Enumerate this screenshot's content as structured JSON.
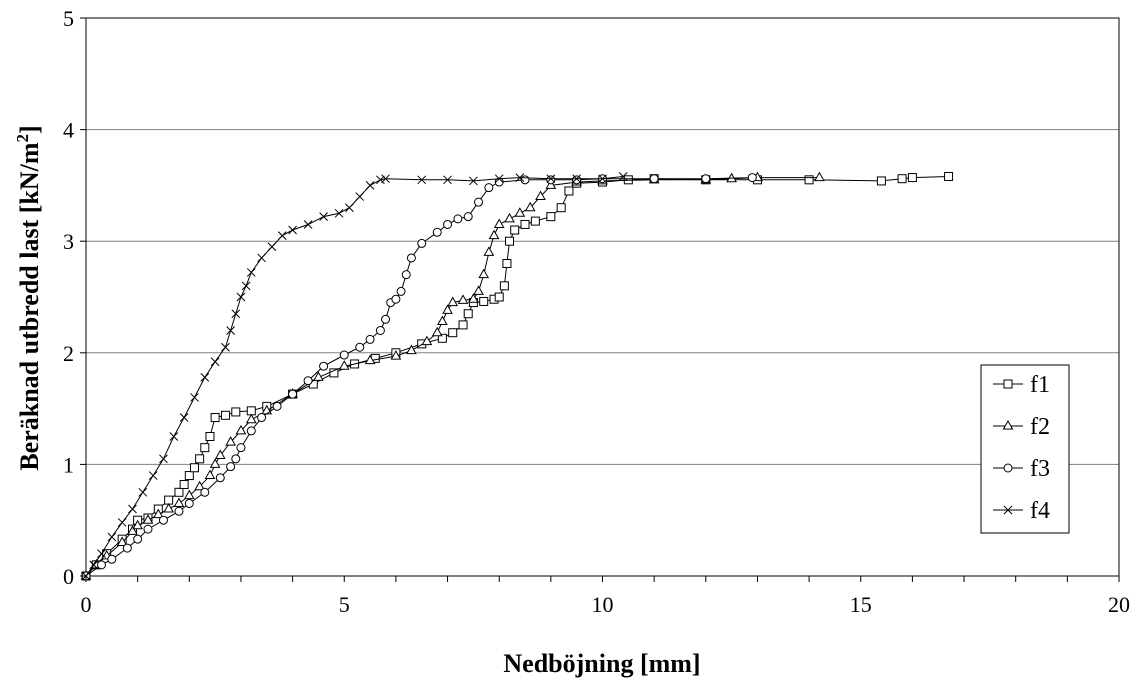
{
  "chart_data": {
    "type": "line",
    "xlabel": "Nedböjning [mm]",
    "ylabel_main": "Beräknad utbredd last [kN/m",
    "ylabel_sup": "2",
    "ylabel_end": "]",
    "xlim": [
      0,
      20
    ],
    "ylim": [
      0,
      5
    ],
    "x_ticks": [
      0,
      5,
      10,
      15,
      20
    ],
    "y_ticks": [
      0,
      1,
      2,
      3,
      4,
      5
    ],
    "grid": "horizontal",
    "legend_position": "right",
    "series": [
      {
        "name": "f1",
        "marker": "square",
        "points": [
          [
            0,
            0
          ],
          [
            0.2,
            0.1
          ],
          [
            0.4,
            0.2
          ],
          [
            0.7,
            0.33
          ],
          [
            0.9,
            0.42
          ],
          [
            1.0,
            0.5
          ],
          [
            1.2,
            0.52
          ],
          [
            1.4,
            0.6
          ],
          [
            1.6,
            0.68
          ],
          [
            1.8,
            0.75
          ],
          [
            1.9,
            0.82
          ],
          [
            2.0,
            0.9
          ],
          [
            2.1,
            0.97
          ],
          [
            2.2,
            1.05
          ],
          [
            2.3,
            1.15
          ],
          [
            2.4,
            1.25
          ],
          [
            2.5,
            1.42
          ],
          [
            2.7,
            1.44
          ],
          [
            2.9,
            1.47
          ],
          [
            3.2,
            1.48
          ],
          [
            3.5,
            1.52
          ],
          [
            4.0,
            1.63
          ],
          [
            4.4,
            1.72
          ],
          [
            4.8,
            1.82
          ],
          [
            5.2,
            1.9
          ],
          [
            5.6,
            1.95
          ],
          [
            6.0,
            2.0
          ],
          [
            6.5,
            2.08
          ],
          [
            6.9,
            2.13
          ],
          [
            7.1,
            2.18
          ],
          [
            7.3,
            2.25
          ],
          [
            7.4,
            2.35
          ],
          [
            7.5,
            2.45
          ],
          [
            7.7,
            2.46
          ],
          [
            7.9,
            2.48
          ],
          [
            8.0,
            2.5
          ],
          [
            8.1,
            2.6
          ],
          [
            8.15,
            2.8
          ],
          [
            8.2,
            3.0
          ],
          [
            8.3,
            3.1
          ],
          [
            8.5,
            3.15
          ],
          [
            8.7,
            3.18
          ],
          [
            9.0,
            3.22
          ],
          [
            9.2,
            3.3
          ],
          [
            9.35,
            3.45
          ],
          [
            9.5,
            3.52
          ],
          [
            10.0,
            3.53
          ],
          [
            10.5,
            3.55
          ],
          [
            11.0,
            3.56
          ],
          [
            12.0,
            3.55
          ],
          [
            13.0,
            3.55
          ],
          [
            14.0,
            3.55
          ],
          [
            15.4,
            3.54
          ],
          [
            15.8,
            3.56
          ],
          [
            16.0,
            3.57
          ],
          [
            16.7,
            3.58
          ]
        ]
      },
      {
        "name": "f2",
        "marker": "triangle",
        "points": [
          [
            0,
            0
          ],
          [
            0.2,
            0.1
          ],
          [
            0.4,
            0.18
          ],
          [
            0.7,
            0.3
          ],
          [
            0.9,
            0.4
          ],
          [
            1.0,
            0.45
          ],
          [
            1.2,
            0.5
          ],
          [
            1.4,
            0.55
          ],
          [
            1.6,
            0.6
          ],
          [
            1.8,
            0.65
          ],
          [
            2.0,
            0.72
          ],
          [
            2.2,
            0.8
          ],
          [
            2.4,
            0.9
          ],
          [
            2.5,
            1.0
          ],
          [
            2.6,
            1.08
          ],
          [
            2.8,
            1.2
          ],
          [
            3.0,
            1.3
          ],
          [
            3.2,
            1.4
          ],
          [
            3.5,
            1.48
          ],
          [
            4.0,
            1.63
          ],
          [
            4.5,
            1.78
          ],
          [
            5.0,
            1.88
          ],
          [
            5.5,
            1.93
          ],
          [
            6.0,
            1.97
          ],
          [
            6.3,
            2.02
          ],
          [
            6.6,
            2.1
          ],
          [
            6.8,
            2.18
          ],
          [
            6.9,
            2.28
          ],
          [
            7.0,
            2.38
          ],
          [
            7.1,
            2.45
          ],
          [
            7.3,
            2.47
          ],
          [
            7.5,
            2.48
          ],
          [
            7.6,
            2.55
          ],
          [
            7.7,
            2.7
          ],
          [
            7.8,
            2.9
          ],
          [
            7.9,
            3.05
          ],
          [
            8.0,
            3.15
          ],
          [
            8.2,
            3.2
          ],
          [
            8.4,
            3.25
          ],
          [
            8.6,
            3.3
          ],
          [
            8.8,
            3.4
          ],
          [
            9.0,
            3.5
          ],
          [
            9.5,
            3.53
          ],
          [
            10.0,
            3.54
          ],
          [
            11.0,
            3.55
          ],
          [
            12.0,
            3.55
          ],
          [
            12.5,
            3.56
          ],
          [
            13.0,
            3.57
          ],
          [
            14.2,
            3.57
          ]
        ]
      },
      {
        "name": "f3",
        "marker": "circle",
        "points": [
          [
            0,
            0
          ],
          [
            0.3,
            0.1
          ],
          [
            0.5,
            0.15
          ],
          [
            0.8,
            0.25
          ],
          [
            1.0,
            0.33
          ],
          [
            1.2,
            0.42
          ],
          [
            1.5,
            0.5
          ],
          [
            1.8,
            0.58
          ],
          [
            2.0,
            0.65
          ],
          [
            2.3,
            0.75
          ],
          [
            2.6,
            0.88
          ],
          [
            2.8,
            0.98
          ],
          [
            2.9,
            1.05
          ],
          [
            3.0,
            1.15
          ],
          [
            3.2,
            1.3
          ],
          [
            3.4,
            1.42
          ],
          [
            3.7,
            1.52
          ],
          [
            4.0,
            1.63
          ],
          [
            4.3,
            1.75
          ],
          [
            4.6,
            1.88
          ],
          [
            5.0,
            1.98
          ],
          [
            5.3,
            2.05
          ],
          [
            5.5,
            2.12
          ],
          [
            5.7,
            2.2
          ],
          [
            5.8,
            2.3
          ],
          [
            5.9,
            2.45
          ],
          [
            6.0,
            2.48
          ],
          [
            6.1,
            2.55
          ],
          [
            6.2,
            2.7
          ],
          [
            6.3,
            2.85
          ],
          [
            6.5,
            2.98
          ],
          [
            6.8,
            3.08
          ],
          [
            7.0,
            3.15
          ],
          [
            7.2,
            3.2
          ],
          [
            7.4,
            3.22
          ],
          [
            7.6,
            3.35
          ],
          [
            7.8,
            3.48
          ],
          [
            8.0,
            3.53
          ],
          [
            8.5,
            3.55
          ],
          [
            9.0,
            3.55
          ],
          [
            9.5,
            3.55
          ],
          [
            10.0,
            3.56
          ],
          [
            11.0,
            3.56
          ],
          [
            12.0,
            3.56
          ],
          [
            12.9,
            3.57
          ]
        ]
      },
      {
        "name": "f4",
        "marker": "cross",
        "points": [
          [
            0,
            0
          ],
          [
            0.15,
            0.1
          ],
          [
            0.3,
            0.2
          ],
          [
            0.5,
            0.35
          ],
          [
            0.7,
            0.48
          ],
          [
            0.9,
            0.6
          ],
          [
            1.1,
            0.75
          ],
          [
            1.3,
            0.9
          ],
          [
            1.5,
            1.05
          ],
          [
            1.7,
            1.25
          ],
          [
            1.9,
            1.42
          ],
          [
            2.1,
            1.6
          ],
          [
            2.3,
            1.78
          ],
          [
            2.5,
            1.92
          ],
          [
            2.7,
            2.05
          ],
          [
            2.8,
            2.2
          ],
          [
            2.9,
            2.35
          ],
          [
            3.0,
            2.5
          ],
          [
            3.1,
            2.6
          ],
          [
            3.2,
            2.72
          ],
          [
            3.4,
            2.85
          ],
          [
            3.6,
            2.95
          ],
          [
            3.8,
            3.05
          ],
          [
            4.0,
            3.1
          ],
          [
            4.3,
            3.15
          ],
          [
            4.6,
            3.22
          ],
          [
            4.9,
            3.25
          ],
          [
            5.1,
            3.3
          ],
          [
            5.3,
            3.4
          ],
          [
            5.5,
            3.5
          ],
          [
            5.7,
            3.55
          ],
          [
            5.8,
            3.56
          ],
          [
            6.5,
            3.55
          ],
          [
            7.0,
            3.55
          ],
          [
            7.5,
            3.54
          ],
          [
            8.0,
            3.56
          ],
          [
            8.4,
            3.57
          ],
          [
            9.0,
            3.56
          ],
          [
            9.5,
            3.56
          ],
          [
            10.0,
            3.56
          ],
          [
            10.4,
            3.58
          ]
        ]
      }
    ]
  }
}
